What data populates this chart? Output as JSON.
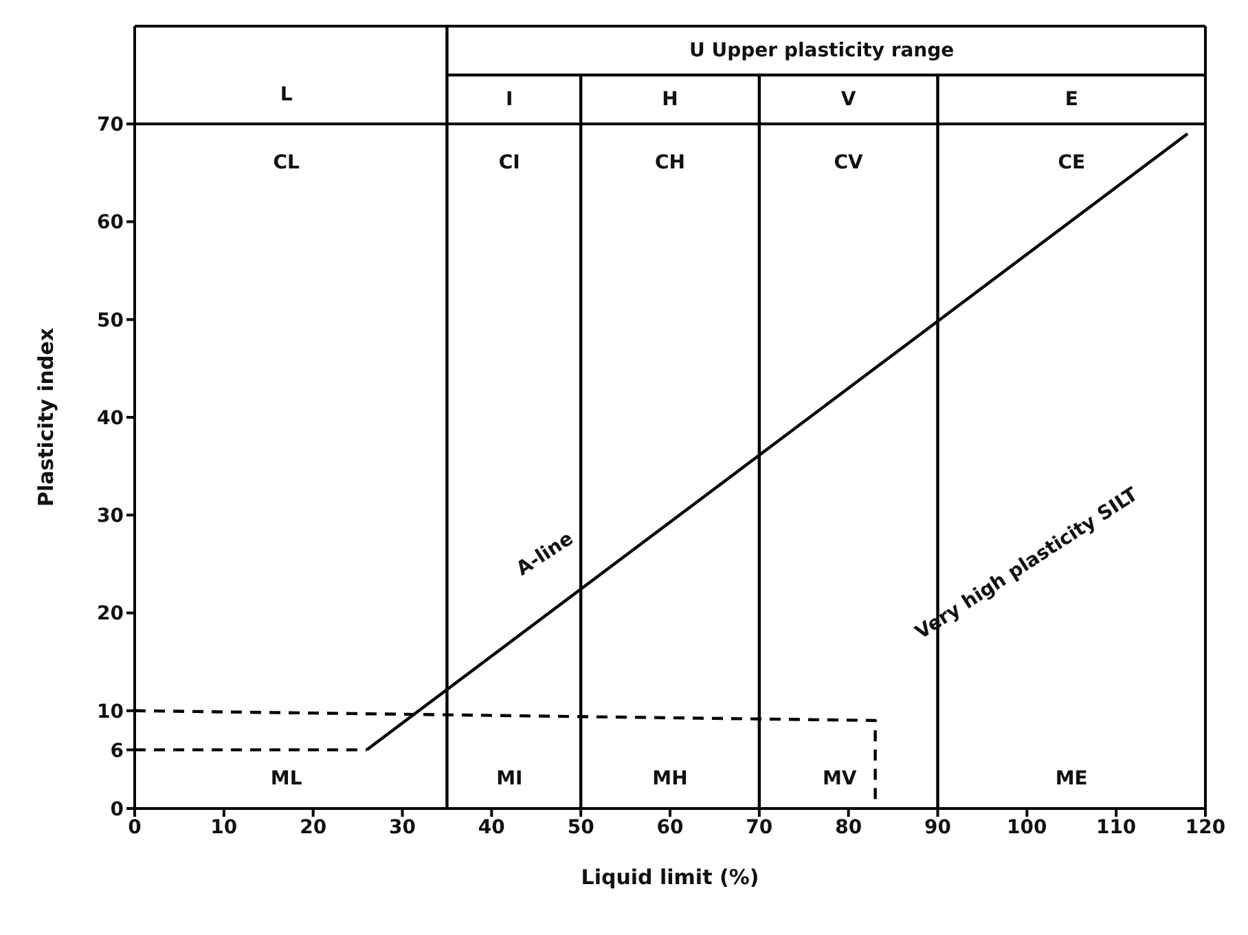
{
  "chart_data": {
    "type": "line",
    "xlabel": "Liquid limit (%)",
    "ylabel": "Plasticity index",
    "xlim": [
      0,
      120
    ],
    "ylim": [
      0,
      80
    ],
    "xticks": [
      0,
      10,
      20,
      30,
      40,
      50,
      60,
      70,
      80,
      90,
      100,
      110,
      120
    ],
    "yticks": [
      0,
      6,
      10,
      20,
      30,
      40,
      50,
      60,
      70
    ],
    "marker": "none",
    "series": [
      {
        "color": "#000000",
        "x": [
          26,
          118
        ],
        "values": [
          6,
          69
        ],
        "line_style": "solid"
      },
      {
        "color": "#000000",
        "x": [
          0,
          26
        ],
        "values": [
          6,
          6
        ],
        "line_style": "dashed"
      },
      {
        "color": "#000000",
        "x": [
          0,
          83,
          83
        ],
        "values": [
          10,
          9,
          0
        ],
        "line_style": "dashed"
      },
      {
        "color": "#000000",
        "x": [
          35,
          35
        ],
        "values": [
          0,
          80
        ],
        "line_style": "solid"
      },
      {
        "color": "#000000",
        "x": [
          50,
          50
        ],
        "values": [
          0,
          75
        ],
        "line_style": "solid"
      },
      {
        "color": "#000000",
        "x": [
          70,
          70
        ],
        "values": [
          0,
          75
        ],
        "line_style": "solid"
      },
      {
        "color": "#000000",
        "x": [
          90,
          90
        ],
        "values": [
          0,
          75
        ],
        "line_style": "solid"
      },
      {
        "color": "#000000",
        "x": [
          35,
          120
        ],
        "values": [
          75,
          75
        ],
        "line_style": "solid"
      }
    ],
    "ref_lines": [
      {
        "axis": "y",
        "value": 70,
        "color": "#000000"
      }
    ],
    "annotations": [
      "L",
      "U   Upper plasticity range",
      "I",
      "H",
      "V",
      "E",
      "CL",
      "CI",
      "CH",
      "CV",
      "CE",
      "ML",
      "MI",
      "MH",
      "MV",
      "ME",
      "A-line",
      "Very high plasticity   SILT"
    ]
  }
}
